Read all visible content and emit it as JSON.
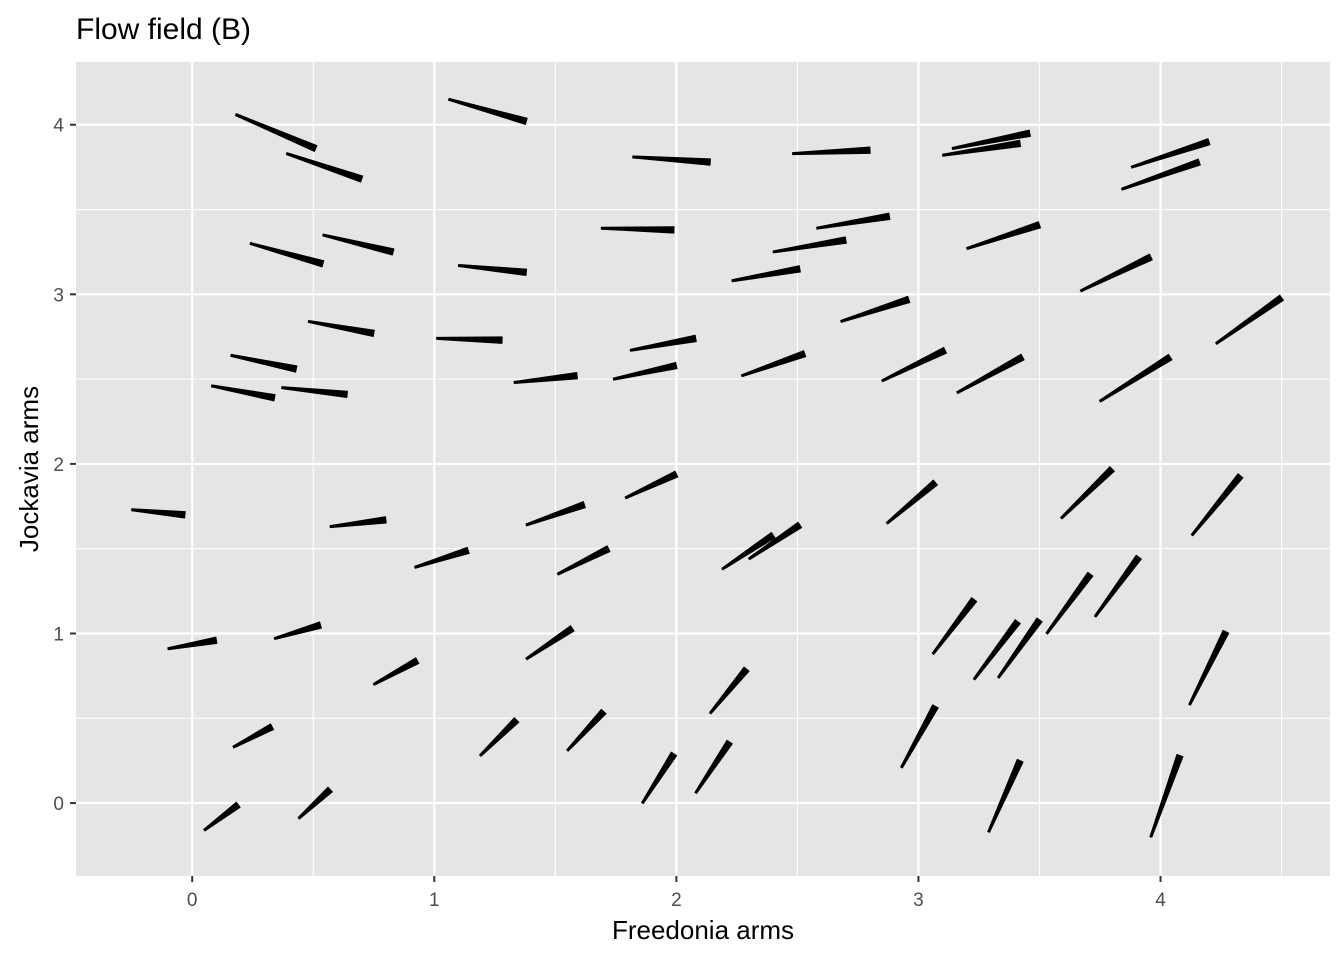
{
  "chart_data": {
    "type": "vector-field",
    "title": "Flow field (B)",
    "xlabel": "Freedonia arms",
    "ylabel": "Jockavia arms",
    "xlim": [
      -0.48,
      4.7
    ],
    "ylim": [
      -0.43,
      4.37
    ],
    "x_ticks": [
      0,
      1,
      2,
      3,
      4
    ],
    "y_ticks": [
      0,
      1,
      2,
      3,
      4
    ],
    "grid": true,
    "colors": {
      "panel": "#e5e5e5",
      "grid": "#ffffff",
      "segment": "#000000",
      "tick": "#4d4d4d"
    },
    "segments": [
      [
        0.18,
        4.06,
        0.51,
        3.86
      ],
      [
        1.06,
        4.15,
        1.38,
        4.02
      ],
      [
        1.82,
        3.81,
        2.14,
        3.78
      ],
      [
        2.48,
        3.83,
        2.8,
        3.85
      ],
      [
        3.14,
        3.86,
        3.46,
        3.95
      ],
      [
        3.88,
        3.75,
        4.2,
        3.9
      ],
      [
        0.39,
        3.83,
        0.7,
        3.68
      ],
      [
        3.1,
        3.82,
        3.42,
        3.89
      ],
      [
        3.84,
        3.62,
        4.16,
        3.78
      ],
      [
        0.24,
        3.3,
        0.54,
        3.18
      ],
      [
        0.54,
        3.35,
        0.83,
        3.25
      ],
      [
        1.1,
        3.17,
        1.38,
        3.13
      ],
      [
        1.69,
        3.39,
        1.99,
        3.38
      ],
      [
        2.23,
        3.08,
        2.51,
        3.15
      ],
      [
        2.4,
        3.25,
        2.7,
        3.32
      ],
      [
        2.58,
        3.39,
        2.88,
        3.46
      ],
      [
        3.2,
        3.27,
        3.5,
        3.41
      ],
      [
        3.67,
        3.02,
        3.96,
        3.22
      ],
      [
        0.48,
        2.84,
        0.75,
        2.77
      ],
      [
        1.01,
        2.74,
        1.28,
        2.73
      ],
      [
        1.33,
        2.48,
        1.59,
        2.52
      ],
      [
        1.74,
        2.5,
        2.0,
        2.58
      ],
      [
        1.81,
        2.67,
        2.08,
        2.74
      ],
      [
        2.27,
        2.52,
        2.53,
        2.65
      ],
      [
        2.68,
        2.84,
        2.96,
        2.97
      ],
      [
        2.85,
        2.49,
        3.11,
        2.67
      ],
      [
        3.16,
        2.42,
        3.43,
        2.63
      ],
      [
        3.75,
        2.37,
        4.04,
        2.63
      ],
      [
        4.23,
        2.71,
        4.5,
        2.98
      ],
      [
        0.16,
        2.64,
        0.43,
        2.56
      ],
      [
        0.08,
        2.46,
        0.34,
        2.39
      ],
      [
        0.37,
        2.45,
        0.64,
        2.41
      ],
      [
        -0.25,
        1.73,
        -0.03,
        1.7
      ],
      [
        0.57,
        1.63,
        0.8,
        1.67
      ],
      [
        0.92,
        1.39,
        1.14,
        1.49
      ],
      [
        1.38,
        1.64,
        1.62,
        1.76
      ],
      [
        1.51,
        1.35,
        1.72,
        1.5
      ],
      [
        1.79,
        1.8,
        2.0,
        1.94
      ],
      [
        2.19,
        1.38,
        2.4,
        1.58
      ],
      [
        2.3,
        1.44,
        2.51,
        1.64
      ],
      [
        2.87,
        1.65,
        3.07,
        1.89
      ],
      [
        3.59,
        1.68,
        3.8,
        1.97
      ],
      [
        4.13,
        1.58,
        4.33,
        1.93
      ],
      [
        -0.1,
        0.91,
        0.1,
        0.96
      ],
      [
        0.34,
        0.97,
        0.53,
        1.05
      ],
      [
        0.75,
        0.7,
        0.93,
        0.84
      ],
      [
        1.38,
        0.85,
        1.57,
        1.03
      ],
      [
        3.06,
        0.88,
        3.23,
        1.2
      ],
      [
        3.23,
        0.73,
        3.41,
        1.07
      ],
      [
        3.33,
        0.74,
        3.5,
        1.08
      ],
      [
        3.53,
        1.0,
        3.71,
        1.35
      ],
      [
        3.73,
        1.1,
        3.91,
        1.45
      ],
      [
        0.17,
        0.33,
        0.33,
        0.45
      ],
      [
        1.19,
        0.28,
        1.34,
        0.49
      ],
      [
        1.55,
        0.31,
        1.7,
        0.54
      ],
      [
        2.14,
        0.53,
        2.29,
        0.79
      ],
      [
        2.08,
        0.06,
        2.22,
        0.36
      ],
      [
        2.93,
        0.21,
        3.07,
        0.57
      ],
      [
        4.12,
        0.58,
        4.27,
        1.01
      ],
      [
        0.05,
        -0.16,
        0.19,
        -0.01
      ],
      [
        0.44,
        -0.09,
        0.57,
        0.08
      ],
      [
        1.86,
        0.0,
        1.99,
        0.29
      ],
      [
        3.29,
        -0.17,
        3.42,
        0.25
      ],
      [
        3.96,
        -0.2,
        4.08,
        0.28
      ]
    ]
  }
}
